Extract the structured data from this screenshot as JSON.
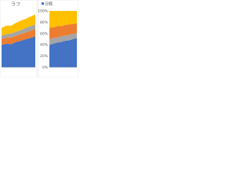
{
  "chart_data": [
    {
      "type": "stacked-area",
      "title": "ラフ",
      "x": [
        1,
        2,
        3,
        4,
        5,
        6,
        7,
        8
      ],
      "series": [
        {
          "color": "#4472c4",
          "values": [
            40,
            42,
            41,
            45,
            47,
            50,
            52,
            55
          ]
        },
        {
          "color": "#ed7d31",
          "values": [
            10,
            11,
            12,
            11,
            12,
            12,
            13,
            13
          ]
        },
        {
          "color": "#a5a5a5",
          "values": [
            6,
            6,
            7,
            7,
            7,
            8,
            8,
            8
          ]
        },
        {
          "color": "#ffc000",
          "values": [
            14,
            15,
            14,
            16,
            17,
            16,
            17,
            18
          ]
        }
      ],
      "xlim": [
        1,
        8
      ],
      "ylim": [
        0,
        100
      ]
    },
    {
      "type": "stacked-area",
      "x": [
        1,
        2,
        3,
        4,
        5,
        6,
        7,
        8
      ],
      "series": [
        {
          "name": "日経",
          "color": "#4472c4",
          "values": [
            40,
            42,
            44,
            45,
            47,
            48,
            50,
            52
          ]
        },
        {
          "color": "#a5a5a5",
          "values": [
            10,
            10,
            9,
            10,
            9,
            10,
            9,
            9
          ]
        },
        {
          "color": "#ed7d31",
          "values": [
            20,
            19,
            20,
            18,
            19,
            18,
            18,
            17
          ]
        },
        {
          "color": "#ffc000",
          "values": [
            30,
            29,
            27,
            27,
            25,
            24,
            23,
            22
          ]
        }
      ],
      "xlim": [
        1,
        8
      ],
      "ylim": [
        0,
        100
      ],
      "yticks": [
        {
          "value": 0,
          "label": "0%"
        },
        {
          "value": 20,
          "label": "20%"
        },
        {
          "value": 40,
          "label": "40%"
        },
        {
          "value": 60,
          "label": "60%"
        },
        {
          "value": 80,
          "label": "80%"
        },
        {
          "value": 100,
          "label": "100%"
        }
      ],
      "grid": true
    }
  ]
}
